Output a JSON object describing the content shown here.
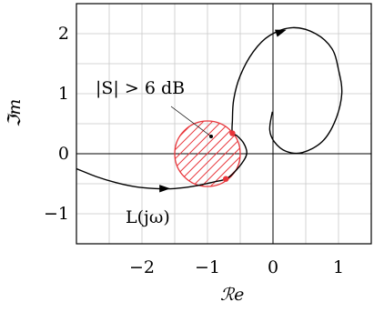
{
  "chart_data": {
    "type": "line",
    "title": "",
    "xlabel": "ℛe",
    "ylabel": "ℑm",
    "xlim": [
      -3.0,
      1.5
    ],
    "ylim": [
      -1.5,
      2.5
    ],
    "x_ticks": [
      "−2",
      "−1",
      "0",
      "1"
    ],
    "x_tick_values": [
      -2,
      -1,
      0,
      1
    ],
    "y_ticks": [
      "−1",
      "0",
      "1",
      "2"
    ],
    "y_tick_values": [
      -1,
      0,
      1,
      2
    ],
    "grid": true,
    "series": [
      {
        "name": "",
        "points": [
          [
            -3.0,
            -0.25
          ],
          [
            -2.7,
            -0.38
          ],
          [
            -2.4,
            -0.48
          ],
          [
            -2.1,
            -0.55
          ],
          [
            -1.8,
            -0.58
          ],
          [
            -1.5,
            -0.58
          ],
          [
            -1.2,
            -0.54
          ],
          [
            -0.9,
            -0.47
          ],
          [
            -0.72,
            -0.42
          ],
          [
            -0.6,
            -0.32
          ],
          [
            -0.45,
            -0.12
          ],
          [
            -0.4,
            0.02
          ],
          [
            -0.45,
            0.18
          ],
          [
            -0.55,
            0.3
          ],
          [
            -0.62,
            0.35
          ],
          [
            -0.62,
            0.55
          ],
          [
            -0.6,
            0.9
          ],
          [
            -0.5,
            1.3
          ],
          [
            -0.3,
            1.7
          ],
          [
            -0.05,
            1.97
          ],
          [
            0.3,
            2.1
          ],
          [
            0.65,
            2.0
          ],
          [
            0.9,
            1.75
          ],
          [
            1.0,
            1.4
          ],
          [
            1.05,
            1.0
          ],
          [
            0.95,
            0.55
          ],
          [
            0.75,
            0.2
          ],
          [
            0.45,
            0.02
          ],
          [
            0.2,
            0.04
          ],
          [
            0.02,
            0.2
          ],
          [
            -0.05,
            0.4
          ],
          [
            -0.01,
            0.7
          ]
        ]
      }
    ],
    "circle": {
      "center": [
        -1,
        0
      ],
      "radius": 0.5,
      "fill": "#e8353a",
      "hatch": true
    },
    "points_marked": [
      [
        -0.62,
        0.34
      ],
      [
        -0.72,
        -0.42
      ]
    ],
    "annotations": [
      {
        "text": "|S| > 6 dB",
        "target": [
          -1.05,
          0.27
        ]
      },
      {
        "text": "L(jω)"
      }
    ],
    "colors": {
      "curve": "#000000",
      "circle": "#e8353a",
      "grid": "#c8c8c8",
      "points": "#e8353a"
    }
  }
}
